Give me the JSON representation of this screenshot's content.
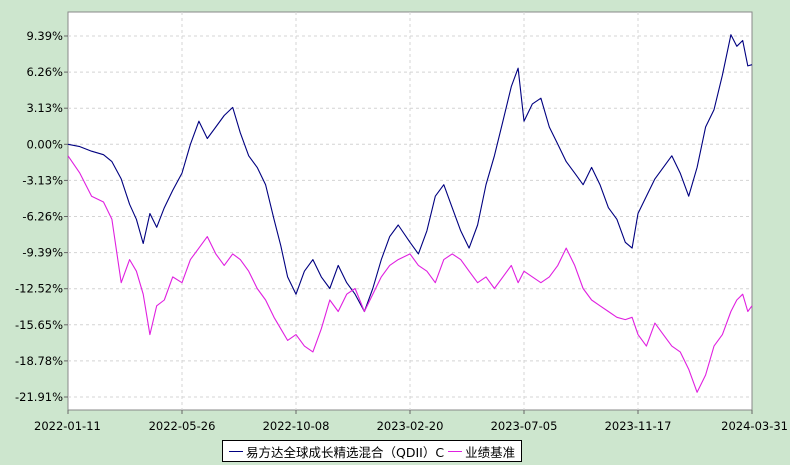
{
  "chart_data": {
    "type": "line",
    "title": "",
    "xlabel": "",
    "ylabel": "",
    "y_unit": "%",
    "ylim": [
      -23.0,
      11.5
    ],
    "y_ticks": [
      9.39,
      6.26,
      3.13,
      0.0,
      -3.13,
      -6.26,
      -9.39,
      -12.52,
      -15.65,
      -18.78,
      -21.91
    ],
    "y_tick_labels": [
      "9.39%",
      "6.26%",
      "3.13%",
      "0.00%",
      "-3.13%",
      "-6.26%",
      "-9.39%",
      "-12.52%",
      "-15.65%",
      "-18.78%",
      "-21.91%"
    ],
    "x_range": [
      "2022-01-11",
      "2024-03-31"
    ],
    "x_ticks": [
      "2022-01-11",
      "2022-05-26",
      "2022-10-08",
      "2023-02-20",
      "2023-07-05",
      "2023-11-17",
      "2024-03-31"
    ],
    "grid": true,
    "legend_position": "bottom-center",
    "series": [
      {
        "name": "易方达全球成长精选混合（QDII）C",
        "color": "#000080",
        "points": [
          [
            "2022-01-11",
            0.0
          ],
          [
            "2022-01-25",
            -0.2
          ],
          [
            "2022-02-08",
            -0.6
          ],
          [
            "2022-02-22",
            -0.9
          ],
          [
            "2022-03-04",
            -1.5
          ],
          [
            "2022-03-15",
            -3.0
          ],
          [
            "2022-03-25",
            -5.2
          ],
          [
            "2022-04-02",
            -6.5
          ],
          [
            "2022-04-10",
            -8.6
          ],
          [
            "2022-04-18",
            -6.0
          ],
          [
            "2022-04-26",
            -7.2
          ],
          [
            "2022-05-05",
            -5.5
          ],
          [
            "2022-05-15",
            -4.0
          ],
          [
            "2022-05-26",
            -2.5
          ],
          [
            "2022-06-05",
            0.0
          ],
          [
            "2022-06-15",
            2.0
          ],
          [
            "2022-06-25",
            0.5
          ],
          [
            "2022-07-05",
            1.5
          ],
          [
            "2022-07-15",
            2.5
          ],
          [
            "2022-07-25",
            3.2
          ],
          [
            "2022-08-03",
            1.0
          ],
          [
            "2022-08-13",
            -1.0
          ],
          [
            "2022-08-23",
            -2.0
          ],
          [
            "2022-09-02",
            -3.5
          ],
          [
            "2022-09-12",
            -6.5
          ],
          [
            "2022-09-20",
            -8.8
          ],
          [
            "2022-09-28",
            -11.5
          ],
          [
            "2022-10-08",
            -13.0
          ],
          [
            "2022-10-18",
            -11.0
          ],
          [
            "2022-10-28",
            -10.0
          ],
          [
            "2022-11-07",
            -11.5
          ],
          [
            "2022-11-17",
            -12.5
          ],
          [
            "2022-11-27",
            -10.5
          ],
          [
            "2022-12-07",
            -12.0
          ],
          [
            "2022-12-17",
            -13.0
          ],
          [
            "2022-12-28",
            -14.5
          ],
          [
            "2023-01-07",
            -12.5
          ],
          [
            "2023-01-17",
            -10.0
          ],
          [
            "2023-01-27",
            -8.0
          ],
          [
            "2023-02-06",
            -7.0
          ],
          [
            "2023-02-20",
            -8.5
          ],
          [
            "2023-03-02",
            -9.5
          ],
          [
            "2023-03-12",
            -7.5
          ],
          [
            "2023-03-22",
            -4.5
          ],
          [
            "2023-04-01",
            -3.5
          ],
          [
            "2023-04-11",
            -5.5
          ],
          [
            "2023-04-21",
            -7.5
          ],
          [
            "2023-05-01",
            -9.0
          ],
          [
            "2023-05-11",
            -7.0
          ],
          [
            "2023-05-21",
            -3.5
          ],
          [
            "2023-05-31",
            -1.0
          ],
          [
            "2023-06-10",
            2.0
          ],
          [
            "2023-06-20",
            5.0
          ],
          [
            "2023-06-28",
            6.6
          ],
          [
            "2023-07-05",
            2.0
          ],
          [
            "2023-07-15",
            3.5
          ],
          [
            "2023-07-25",
            4.0
          ],
          [
            "2023-08-04",
            1.5
          ],
          [
            "2023-08-14",
            0.0
          ],
          [
            "2023-08-24",
            -1.5
          ],
          [
            "2023-09-03",
            -2.5
          ],
          [
            "2023-09-13",
            -3.5
          ],
          [
            "2023-09-23",
            -2.0
          ],
          [
            "2023-10-03",
            -3.5
          ],
          [
            "2023-10-13",
            -5.5
          ],
          [
            "2023-10-23",
            -6.5
          ],
          [
            "2023-11-02",
            -8.5
          ],
          [
            "2023-11-10",
            -9.0
          ],
          [
            "2023-11-17",
            -6.0
          ],
          [
            "2023-11-27",
            -4.5
          ],
          [
            "2023-12-07",
            -3.0
          ],
          [
            "2023-12-17",
            -2.0
          ],
          [
            "2023-12-27",
            -1.0
          ],
          [
            "2024-01-06",
            -2.5
          ],
          [
            "2024-01-16",
            -4.5
          ],
          [
            "2024-01-26",
            -2.0
          ],
          [
            "2024-02-05",
            1.5
          ],
          [
            "2024-02-15",
            3.0
          ],
          [
            "2024-02-25",
            6.0
          ],
          [
            "2024-03-06",
            9.5
          ],
          [
            "2024-03-13",
            8.5
          ],
          [
            "2024-03-20",
            9.0
          ],
          [
            "2024-03-26",
            6.8
          ],
          [
            "2024-03-31",
            6.9
          ]
        ]
      },
      {
        "name": "业绩基准",
        "color": "#e020e0",
        "points": [
          [
            "2022-01-11",
            -1.0
          ],
          [
            "2022-01-25",
            -2.5
          ],
          [
            "2022-02-08",
            -4.5
          ],
          [
            "2022-02-22",
            -5.0
          ],
          [
            "2022-03-04",
            -6.5
          ],
          [
            "2022-03-15",
            -12.0
          ],
          [
            "2022-03-25",
            -10.0
          ],
          [
            "2022-04-02",
            -11.0
          ],
          [
            "2022-04-10",
            -13.0
          ],
          [
            "2022-04-18",
            -16.5
          ],
          [
            "2022-04-26",
            -14.0
          ],
          [
            "2022-05-05",
            -13.5
          ],
          [
            "2022-05-15",
            -11.5
          ],
          [
            "2022-05-26",
            -12.0
          ],
          [
            "2022-06-05",
            -10.0
          ],
          [
            "2022-06-15",
            -9.0
          ],
          [
            "2022-06-25",
            -8.0
          ],
          [
            "2022-07-05",
            -9.5
          ],
          [
            "2022-07-15",
            -10.5
          ],
          [
            "2022-07-25",
            -9.5
          ],
          [
            "2022-08-03",
            -10.0
          ],
          [
            "2022-08-13",
            -11.0
          ],
          [
            "2022-08-23",
            -12.5
          ],
          [
            "2022-09-02",
            -13.5
          ],
          [
            "2022-09-12",
            -15.0
          ],
          [
            "2022-09-20",
            -16.0
          ],
          [
            "2022-09-28",
            -17.0
          ],
          [
            "2022-10-08",
            -16.5
          ],
          [
            "2022-10-18",
            -17.5
          ],
          [
            "2022-10-28",
            -18.0
          ],
          [
            "2022-11-07",
            -16.0
          ],
          [
            "2022-11-17",
            -13.5
          ],
          [
            "2022-11-27",
            -14.5
          ],
          [
            "2022-12-07",
            -13.0
          ],
          [
            "2022-12-17",
            -12.5
          ],
          [
            "2022-12-28",
            -14.5
          ],
          [
            "2023-01-07",
            -13.0
          ],
          [
            "2023-01-17",
            -11.5
          ],
          [
            "2023-01-27",
            -10.5
          ],
          [
            "2023-02-06",
            -10.0
          ],
          [
            "2023-02-20",
            -9.5
          ],
          [
            "2023-03-02",
            -10.5
          ],
          [
            "2023-03-12",
            -11.0
          ],
          [
            "2023-03-22",
            -12.0
          ],
          [
            "2023-04-01",
            -10.0
          ],
          [
            "2023-04-11",
            -9.5
          ],
          [
            "2023-04-21",
            -10.0
          ],
          [
            "2023-05-01",
            -11.0
          ],
          [
            "2023-05-11",
            -12.0
          ],
          [
            "2023-05-21",
            -11.5
          ],
          [
            "2023-05-31",
            -12.5
          ],
          [
            "2023-06-10",
            -11.5
          ],
          [
            "2023-06-20",
            -10.5
          ],
          [
            "2023-06-28",
            -12.0
          ],
          [
            "2023-07-05",
            -11.0
          ],
          [
            "2023-07-15",
            -11.5
          ],
          [
            "2023-07-25",
            -12.0
          ],
          [
            "2023-08-04",
            -11.5
          ],
          [
            "2023-08-14",
            -10.5
          ],
          [
            "2023-08-24",
            -9.0
          ],
          [
            "2023-09-03",
            -10.5
          ],
          [
            "2023-09-13",
            -12.5
          ],
          [
            "2023-09-23",
            -13.5
          ],
          [
            "2023-10-03",
            -14.0
          ],
          [
            "2023-10-13",
            -14.5
          ],
          [
            "2023-10-23",
            -15.0
          ],
          [
            "2023-11-02",
            -15.2
          ],
          [
            "2023-11-10",
            -15.0
          ],
          [
            "2023-11-17",
            -16.5
          ],
          [
            "2023-11-27",
            -17.5
          ],
          [
            "2023-12-07",
            -15.5
          ],
          [
            "2023-12-17",
            -16.5
          ],
          [
            "2023-12-27",
            -17.5
          ],
          [
            "2024-01-06",
            -18.0
          ],
          [
            "2024-01-16",
            -19.5
          ],
          [
            "2024-01-26",
            -21.5
          ],
          [
            "2024-02-05",
            -20.0
          ],
          [
            "2024-02-15",
            -17.5
          ],
          [
            "2024-02-25",
            -16.5
          ],
          [
            "2024-03-06",
            -14.5
          ],
          [
            "2024-03-13",
            -13.5
          ],
          [
            "2024-03-20",
            -13.0
          ],
          [
            "2024-03-26",
            -14.5
          ],
          [
            "2024-03-31",
            -14.0
          ]
        ]
      }
    ]
  }
}
